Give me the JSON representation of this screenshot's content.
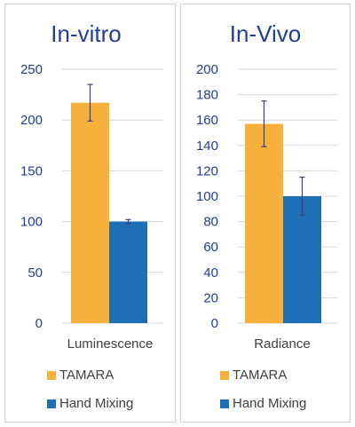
{
  "charts": [
    {
      "title": "In-vitro",
      "xlabel": "Luminescence",
      "legend": [
        "TAMARA",
        "Hand Mixing"
      ]
    },
    {
      "title": "In-Vivo",
      "xlabel": "Radiance",
      "legend": [
        "TAMARA",
        "Hand Mixing"
      ]
    }
  ],
  "colors": {
    "tamara": "#F5B13C",
    "hand_mixing": "#1E6FB5",
    "title": "#1F3F8F",
    "tick": "#1F3F8F",
    "grid": "#d9d9d9",
    "error_bar": "#3a3f7a"
  },
  "chart_data": [
    {
      "type": "bar",
      "title": "In-vitro",
      "xlabel": "Luminescence",
      "ylabel": "",
      "categories": [
        "Luminescence"
      ],
      "series": [
        {
          "name": "TAMARA",
          "values": [
            217
          ],
          "error": [
            18
          ]
        },
        {
          "name": "Hand Mixing",
          "values": [
            100
          ],
          "error": [
            2
          ]
        }
      ],
      "ylim": [
        0,
        250
      ],
      "yticks": [
        "0",
        "50",
        "100",
        "150",
        "200",
        "250"
      ],
      "grid": true,
      "legend_position": "bottom"
    },
    {
      "type": "bar",
      "title": "In-Vivo",
      "xlabel": "Radiance",
      "ylabel": "",
      "categories": [
        "Radiance"
      ],
      "series": [
        {
          "name": "TAMARA",
          "values": [
            157
          ],
          "error": [
            18
          ]
        },
        {
          "name": "Hand Mixing",
          "values": [
            100
          ],
          "error": [
            15
          ]
        }
      ],
      "ylim": [
        0,
        200
      ],
      "yticks": [
        "0",
        "20",
        "40",
        "60",
        "80",
        "100",
        "120",
        "140",
        "160",
        "180",
        "200"
      ],
      "grid": true,
      "legend_position": "bottom"
    }
  ]
}
